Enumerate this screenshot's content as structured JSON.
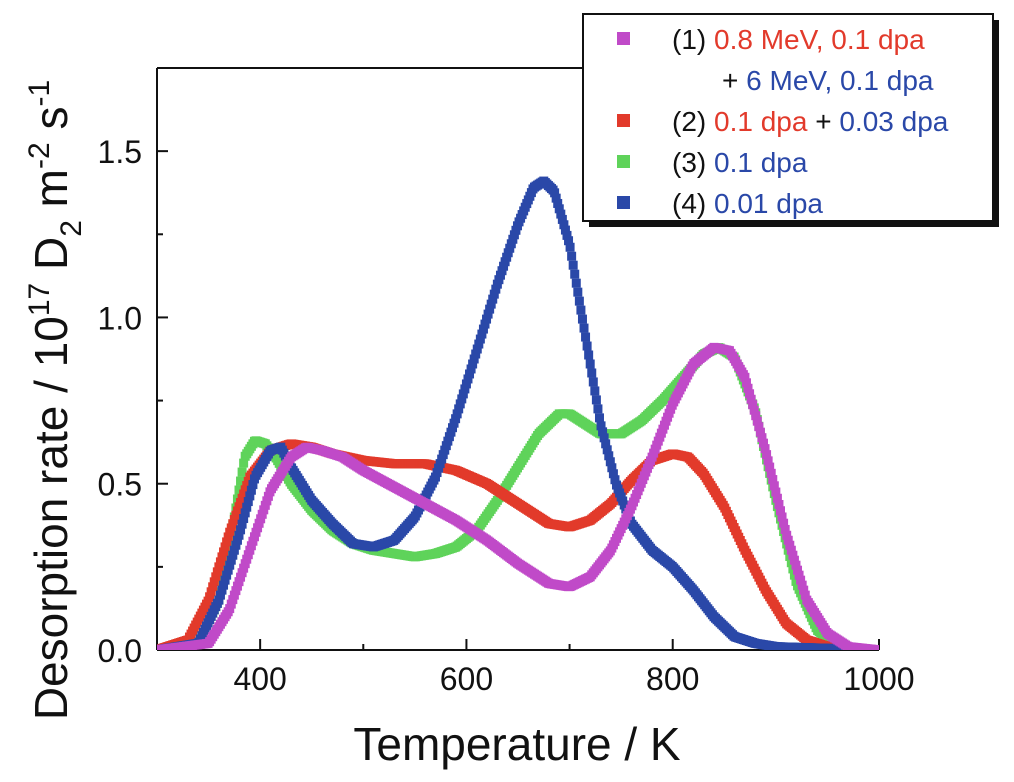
{
  "chart_data": {
    "type": "scatter",
    "xlabel": "Temperature / K",
    "ylabel": {
      "main": "Desorption rate / 10",
      "exp": "17",
      "d": " D",
      "d_sub": "2",
      "m": " m",
      "m_exp": "-2",
      "s": " s",
      "s_exp": "-1"
    },
    "xlim": [
      300,
      1000
    ],
    "ylim": [
      0.0,
      1.75
    ],
    "xticks": [
      400,
      600,
      800,
      1000
    ],
    "xtick_labels": [
      "400",
      "600",
      "800",
      "1000"
    ],
    "yticks": [
      0.0,
      0.5,
      1.0,
      1.5
    ],
    "ytick_labels": [
      "0.0",
      "0.5",
      "1.0",
      "1.5"
    ],
    "grid": false,
    "legend_position": "top-right",
    "legend": [
      {
        "marker_color": "#c04ac8",
        "lines": [
          [
            {
              "text": "(1) ",
              "color": "#111111"
            },
            {
              "text": "0.8 MeV, 0.1 dpa",
              "color": "#e23a2b"
            }
          ],
          [
            {
              "text": "+ ",
              "color": "#111111"
            },
            {
              "text": "6 MeV, 0.1 dpa",
              "color": "#2a48a8"
            }
          ]
        ]
      },
      {
        "marker_color": "#e23a2b",
        "lines": [
          [
            {
              "text": "(2) ",
              "color": "#111111"
            },
            {
              "text": "0.1 dpa",
              "color": "#e23a2b"
            },
            {
              "text": " + ",
              "color": "#111111"
            },
            {
              "text": "0.03 dpa",
              "color": "#2a48a8"
            }
          ]
        ]
      },
      {
        "marker_color": "#5fd35a",
        "lines": [
          [
            {
              "text": "(3) ",
              "color": "#111111"
            },
            {
              "text": "0.1 dpa",
              "color": "#2a48a8"
            }
          ]
        ]
      },
      {
        "marker_color": "#2a48a8",
        "lines": [
          [
            {
              "text": "(4) ",
              "color": "#111111"
            },
            {
              "text": "0.01 dpa",
              "color": "#2a48a8"
            }
          ]
        ]
      }
    ],
    "series": [
      {
        "color": "#5fd35a",
        "points": [
          [
            300,
            0.0
          ],
          [
            340,
            0.02
          ],
          [
            360,
            0.15
          ],
          [
            375,
            0.4
          ],
          [
            385,
            0.58
          ],
          [
            395,
            0.63
          ],
          [
            405,
            0.62
          ],
          [
            415,
            0.58
          ],
          [
            430,
            0.5
          ],
          [
            450,
            0.42
          ],
          [
            470,
            0.36
          ],
          [
            490,
            0.32
          ],
          [
            510,
            0.3
          ],
          [
            530,
            0.29
          ],
          [
            550,
            0.28
          ],
          [
            570,
            0.29
          ],
          [
            590,
            0.31
          ],
          [
            610,
            0.36
          ],
          [
            630,
            0.45
          ],
          [
            650,
            0.55
          ],
          [
            670,
            0.65
          ],
          [
            690,
            0.71
          ],
          [
            700,
            0.71
          ],
          [
            715,
            0.68
          ],
          [
            730,
            0.65
          ],
          [
            750,
            0.65
          ],
          [
            770,
            0.69
          ],
          [
            790,
            0.75
          ],
          [
            810,
            0.82
          ],
          [
            830,
            0.89
          ],
          [
            845,
            0.91
          ],
          [
            860,
            0.88
          ],
          [
            880,
            0.72
          ],
          [
            900,
            0.45
          ],
          [
            920,
            0.2
          ],
          [
            940,
            0.06
          ],
          [
            960,
            0.01
          ],
          [
            1000,
            0.0
          ]
        ]
      },
      {
        "color": "#e23a2b",
        "points": [
          [
            300,
            0.0
          ],
          [
            330,
            0.03
          ],
          [
            350,
            0.15
          ],
          [
            370,
            0.35
          ],
          [
            390,
            0.52
          ],
          [
            410,
            0.6
          ],
          [
            430,
            0.62
          ],
          [
            450,
            0.61
          ],
          [
            470,
            0.59
          ],
          [
            500,
            0.57
          ],
          [
            530,
            0.56
          ],
          [
            560,
            0.56
          ],
          [
            590,
            0.54
          ],
          [
            620,
            0.5
          ],
          [
            650,
            0.44
          ],
          [
            680,
            0.38
          ],
          [
            700,
            0.37
          ],
          [
            720,
            0.39
          ],
          [
            740,
            0.44
          ],
          [
            760,
            0.51
          ],
          [
            780,
            0.57
          ],
          [
            800,
            0.59
          ],
          [
            815,
            0.58
          ],
          [
            830,
            0.53
          ],
          [
            850,
            0.43
          ],
          [
            870,
            0.3
          ],
          [
            890,
            0.18
          ],
          [
            910,
            0.08
          ],
          [
            930,
            0.03
          ],
          [
            950,
            0.01
          ],
          [
            1000,
            0.0
          ]
        ]
      },
      {
        "color": "#2a48a8",
        "points": [
          [
            300,
            0.0
          ],
          [
            340,
            0.02
          ],
          [
            360,
            0.15
          ],
          [
            380,
            0.35
          ],
          [
            395,
            0.52
          ],
          [
            410,
            0.6
          ],
          [
            420,
            0.61
          ],
          [
            430,
            0.55
          ],
          [
            450,
            0.45
          ],
          [
            470,
            0.38
          ],
          [
            490,
            0.32
          ],
          [
            510,
            0.31
          ],
          [
            530,
            0.33
          ],
          [
            550,
            0.4
          ],
          [
            570,
            0.52
          ],
          [
            590,
            0.7
          ],
          [
            610,
            0.9
          ],
          [
            630,
            1.1
          ],
          [
            650,
            1.28
          ],
          [
            665,
            1.39
          ],
          [
            675,
            1.41
          ],
          [
            685,
            1.38
          ],
          [
            700,
            1.22
          ],
          [
            715,
            0.95
          ],
          [
            730,
            0.68
          ],
          [
            745,
            0.5
          ],
          [
            760,
            0.38
          ],
          [
            780,
            0.3
          ],
          [
            800,
            0.25
          ],
          [
            820,
            0.18
          ],
          [
            840,
            0.1
          ],
          [
            860,
            0.04
          ],
          [
            880,
            0.02
          ],
          [
            900,
            0.01
          ],
          [
            1000,
            0.0
          ]
        ]
      },
      {
        "color": "#c04ac8",
        "points": [
          [
            300,
            0.0
          ],
          [
            350,
            0.02
          ],
          [
            370,
            0.12
          ],
          [
            390,
            0.3
          ],
          [
            410,
            0.48
          ],
          [
            430,
            0.58
          ],
          [
            445,
            0.61
          ],
          [
            460,
            0.6
          ],
          [
            480,
            0.58
          ],
          [
            500,
            0.54
          ],
          [
            530,
            0.49
          ],
          [
            560,
            0.44
          ],
          [
            590,
            0.39
          ],
          [
            620,
            0.33
          ],
          [
            650,
            0.26
          ],
          [
            680,
            0.2
          ],
          [
            700,
            0.19
          ],
          [
            720,
            0.22
          ],
          [
            740,
            0.3
          ],
          [
            760,
            0.43
          ],
          [
            780,
            0.58
          ],
          [
            800,
            0.74
          ],
          [
            820,
            0.86
          ],
          [
            840,
            0.91
          ],
          [
            855,
            0.9
          ],
          [
            870,
            0.82
          ],
          [
            890,
            0.6
          ],
          [
            910,
            0.35
          ],
          [
            930,
            0.15
          ],
          [
            950,
            0.05
          ],
          [
            970,
            0.01
          ],
          [
            1000,
            0.0
          ]
        ]
      }
    ]
  }
}
